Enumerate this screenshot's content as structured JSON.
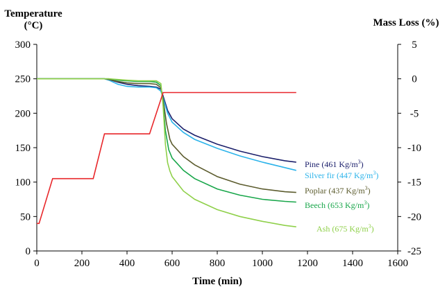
{
  "chart_data": {
    "type": "line",
    "xlabel": "Time (min)",
    "ylabel_left": [
      "Temperature",
      "(°C)"
    ],
    "ylabel_right": "Mass Loss (%)",
    "xlim": [
      0,
      1600
    ],
    "ylim_left": [
      0,
      300
    ],
    "ylim_right": [
      -25,
      5
    ],
    "x_ticks": [
      "0",
      "200",
      "400",
      "600",
      "800",
      "1000",
      "1200",
      "1400",
      "1600"
    ],
    "y_left_ticks": [
      "0",
      "50",
      "100",
      "150",
      "200",
      "250",
      "300"
    ],
    "y_right_ticks": [
      "-25",
      "-20",
      "-15",
      "-10",
      "-5",
      "0",
      "5"
    ],
    "grid": false,
    "temperature": {
      "color": "#e8262a",
      "axis": "left",
      "x": [
        0,
        10,
        70,
        250,
        300,
        500,
        560,
        580,
        600,
        800,
        1000,
        1150
      ],
      "y": [
        40,
        40,
        105,
        105,
        170,
        170,
        230,
        230,
        230,
        230,
        230,
        230
      ]
    },
    "series": [
      {
        "label": "Pine (461 Kg/m",
        "sup": "3",
        "close": ")",
        "color": "#1b1f6b",
        "x": [
          0,
          300,
          320,
          360,
          400,
          450,
          500,
          530,
          550,
          560,
          580,
          600,
          650,
          700,
          800,
          900,
          1000,
          1100,
          1150
        ],
        "y": [
          0,
          0,
          -0.1,
          -0.5,
          -0.8,
          -1.0,
          -1.1,
          -1.2,
          -1.5,
          -2.5,
          -4.6,
          -5.8,
          -7.3,
          -8.2,
          -9.5,
          -10.5,
          -11.3,
          -11.9,
          -12.1
        ]
      },
      {
        "label": "Silver fir (447 Kg/m",
        "sup": "3",
        "close": ")",
        "color": "#2bb3ea",
        "x": [
          0,
          300,
          320,
          360,
          400,
          450,
          500,
          530,
          550,
          560,
          580,
          600,
          650,
          700,
          800,
          900,
          1000,
          1100,
          1150
        ],
        "y": [
          0,
          0,
          -0.2,
          -0.8,
          -1.1,
          -1.2,
          -1.2,
          -1.3,
          -1.8,
          -2.8,
          -5.0,
          -6.3,
          -7.8,
          -8.8,
          -10.1,
          -11.2,
          -12.1,
          -12.9,
          -13.3
        ]
      },
      {
        "label": "Poplar (437 Kg/m",
        "sup": "3",
        "close": ")",
        "color": "#5c5c2e",
        "x": [
          0,
          300,
          320,
          360,
          400,
          450,
          500,
          530,
          550,
          560,
          575,
          590,
          600,
          650,
          700,
          800,
          900,
          1000,
          1100,
          1150
        ],
        "y": [
          0,
          0,
          -0.1,
          -0.4,
          -0.6,
          -0.7,
          -0.7,
          -0.8,
          -1.3,
          -3.0,
          -6.5,
          -8.8,
          -9.5,
          -11.3,
          -12.5,
          -14.2,
          -15.3,
          -16.0,
          -16.4,
          -16.5
        ]
      },
      {
        "label": "Beech (653 Kg/m",
        "sup": "3",
        "close": ")",
        "color": "#18a64a",
        "x": [
          0,
          300,
          320,
          360,
          400,
          450,
          500,
          530,
          550,
          560,
          570,
          585,
          600,
          650,
          700,
          800,
          900,
          1000,
          1100,
          1150
        ],
        "y": [
          0,
          0,
          0,
          -0.2,
          -0.3,
          -0.4,
          -0.4,
          -0.5,
          -1.0,
          -3.5,
          -7.5,
          -10.3,
          -11.5,
          -13.3,
          -14.5,
          -16.0,
          -16.9,
          -17.5,
          -17.8,
          -17.9
        ]
      },
      {
        "label": "Ash (675 Kg/m",
        "sup": "3",
        "close": ")",
        "color": "#8fd04a",
        "x": [
          0,
          300,
          320,
          360,
          400,
          450,
          500,
          530,
          550,
          560,
          570,
          580,
          590,
          600,
          650,
          700,
          800,
          900,
          1000,
          1100,
          1150
        ],
        "y": [
          0,
          0,
          0,
          -0.1,
          -0.2,
          -0.3,
          -0.3,
          -0.3,
          -0.7,
          -4.0,
          -9.5,
          -12.2,
          -13.4,
          -14.2,
          -16.3,
          -17.5,
          -19.0,
          -20.0,
          -20.7,
          -21.3,
          -21.5
        ]
      }
    ]
  }
}
